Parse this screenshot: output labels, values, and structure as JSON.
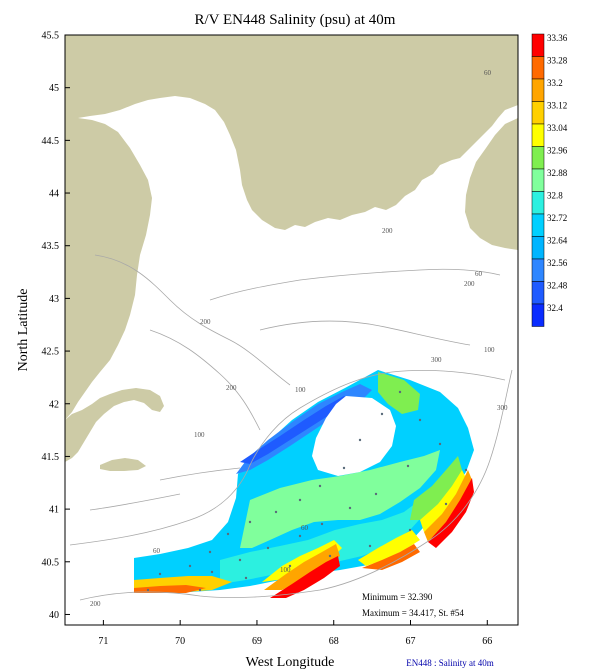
{
  "title": "R/V EN448 Salinity (psu) at 40m",
  "axes": {
    "xlabel": "West Longitude",
    "ylabel": "North Latitude",
    "x_ticks": [
      "71",
      "70",
      "69",
      "68",
      "67",
      "66"
    ],
    "y_ticks": [
      "45.5",
      "45",
      "44.5",
      "44",
      "43.5",
      "43",
      "42.5",
      "42",
      "41.5",
      "41",
      "40.5",
      "40"
    ],
    "x_range_west_longitude": [
      71.5,
      65.6
    ],
    "y_range_north_latitude": [
      39.9,
      45.5
    ]
  },
  "colorbar": {
    "labels": [
      "33.36",
      "33.28",
      "33.2",
      "33.12",
      "33.04",
      "32.96",
      "32.88",
      "32.8",
      "32.72",
      "32.64",
      "32.56",
      "32.48",
      "32.4"
    ],
    "colors": [
      "#ff0000",
      "#ff6a00",
      "#ffa500",
      "#ffd000",
      "#ffff00",
      "#7fee50",
      "#80ff9c",
      "#2cf0e0",
      "#00d0ff",
      "#00b5ff",
      "#2e86ff",
      "#1f5bff",
      "#0a2cff"
    ]
  },
  "colors": {
    "land": "#cdcba6",
    "bathymetry_contour": "#a8a8a8",
    "footer_text": "#0000aa"
  },
  "contour_labels": [
    "60",
    "200",
    "200",
    "60",
    "200",
    "300",
    "100",
    "200",
    "100",
    "100",
    "300",
    "60",
    "60",
    "100",
    "200"
  ],
  "annotations": {
    "minimum": "Minimum = 32.390",
    "maximum": "Maximum = 34.417, St. #54"
  },
  "footer": "EN448 : Salinity at 40m"
}
